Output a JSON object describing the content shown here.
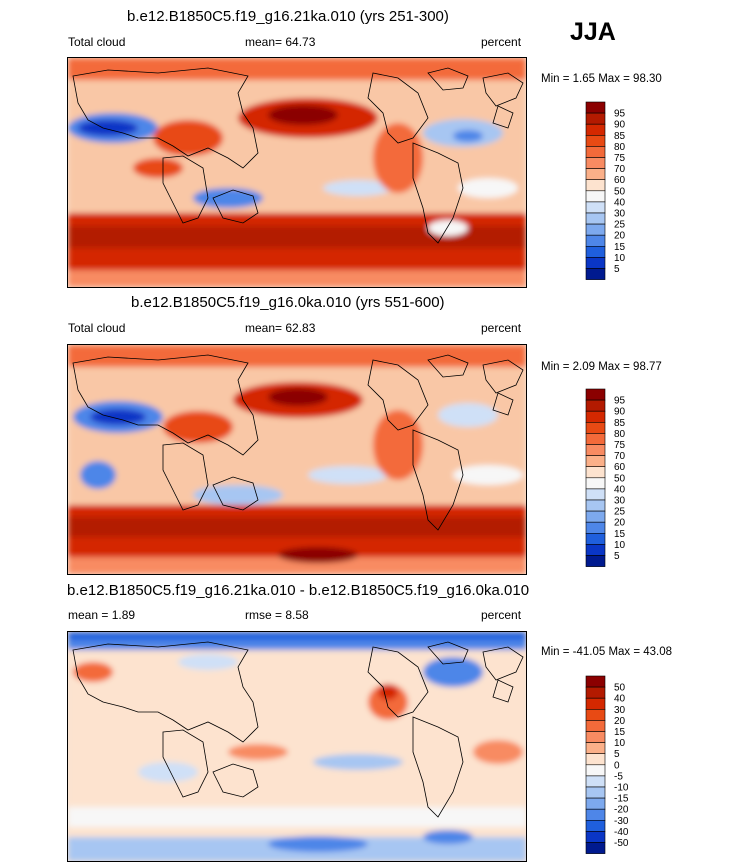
{
  "season_label": "JJA",
  "units": "percent",
  "chart_data": [
    {
      "type": "heatmap",
      "title": "b.e12.B1850C5.f19_g16.21ka.010 (yrs 251-300)",
      "left_label": "Total cloud",
      "mean_text": "mean=  64.73",
      "right_label": "percent",
      "minmax_text": "Min =   1.65 Max =  98.30",
      "min": 1.65,
      "max": 98.3,
      "mean": 64.73,
      "colorbar": {
        "labels": [
          "95",
          "90",
          "85",
          "80",
          "75",
          "70",
          "60",
          "50",
          "40",
          "30",
          "25",
          "20",
          "15",
          "10",
          "5"
        ],
        "colors": [
          "#8b0000",
          "#b31a00",
          "#d42800",
          "#e84a14",
          "#f36a3a",
          "#f88b62",
          "#fbb089",
          "#fde3cf",
          "#f7f7f7",
          "#cfe0f7",
          "#a7c6f2",
          "#7da9ee",
          "#4e86e8",
          "#1f5fdd",
          "#0a36c6",
          "#001a8f"
        ]
      }
    },
    {
      "type": "heatmap",
      "title": "b.e12.B1850C5.f19_g16.0ka.010 (yrs 551-600)",
      "left_label": "Total cloud",
      "mean_text": "mean=  62.83",
      "right_label": "percent",
      "minmax_text": "Min =   2.09 Max =  98.77",
      "min": 2.09,
      "max": 98.77,
      "mean": 62.83,
      "colorbar": {
        "labels": [
          "95",
          "90",
          "85",
          "80",
          "75",
          "70",
          "60",
          "50",
          "40",
          "30",
          "25",
          "20",
          "15",
          "10",
          "5"
        ],
        "colors": [
          "#8b0000",
          "#b31a00",
          "#d42800",
          "#e84a14",
          "#f36a3a",
          "#f88b62",
          "#fbb089",
          "#fde3cf",
          "#f7f7f7",
          "#cfe0f7",
          "#a7c6f2",
          "#7da9ee",
          "#4e86e8",
          "#1f5fdd",
          "#0a36c6",
          "#001a8f"
        ]
      }
    },
    {
      "type": "heatmap",
      "title": "b.e12.B1850C5.f19_g16.21ka.010 - b.e12.B1850C5.f19_g16.0ka.010",
      "left_label": "mean =   1.89",
      "rmse_text": "rmse =   8.58",
      "right_label": "percent",
      "minmax_text": "Min = -41.05 Max =  43.08",
      "min": -41.05,
      "max": 43.08,
      "mean": 1.89,
      "rmse": 8.58,
      "colorbar": {
        "labels": [
          "50",
          "40",
          "30",
          "20",
          "15",
          "10",
          "5",
          "0",
          "-5",
          "-10",
          "-15",
          "-20",
          "-30",
          "-40",
          "-50"
        ],
        "colors": [
          "#8b0000",
          "#b31a00",
          "#d42800",
          "#e84a14",
          "#f36a3a",
          "#f88b62",
          "#fbb089",
          "#fde3cf",
          "#f7f7f7",
          "#cfe0f7",
          "#a7c6f2",
          "#7da9ee",
          "#4e86e8",
          "#1f5fdd",
          "#0a36c6",
          "#001a8f"
        ]
      }
    }
  ]
}
